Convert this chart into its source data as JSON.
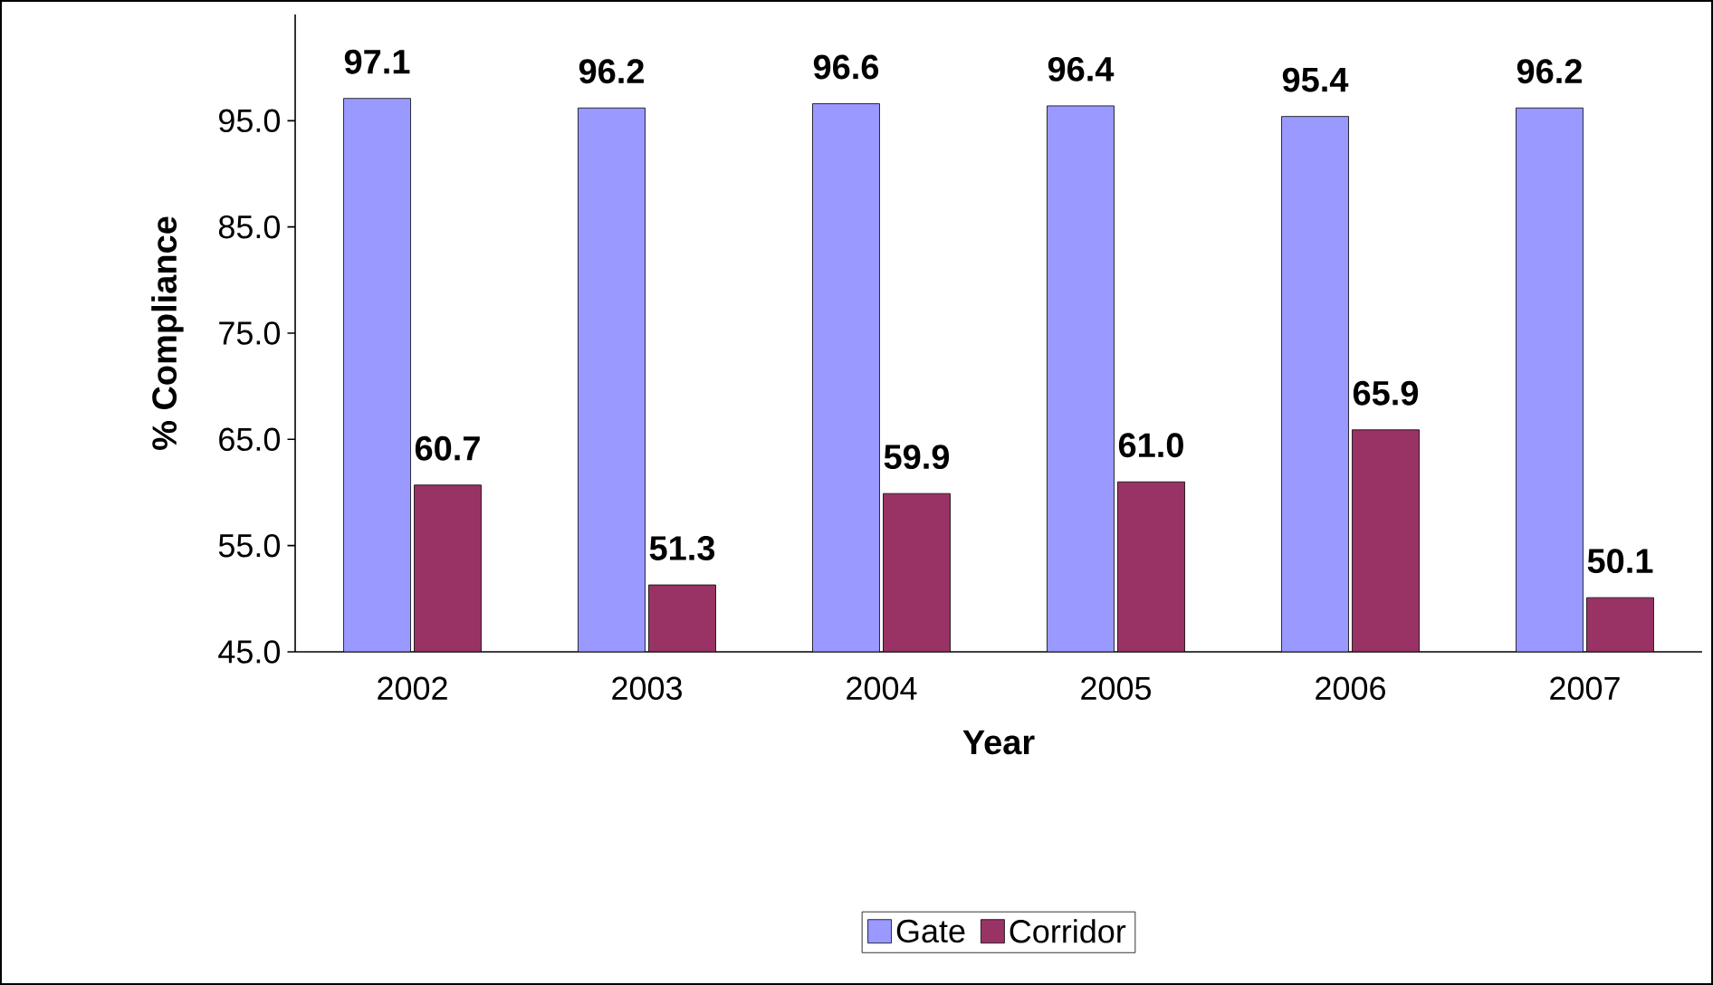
{
  "chart_data": {
    "type": "bar",
    "xlabel": "Year",
    "ylabel": "% Compliance",
    "categories": [
      "2002",
      "2003",
      "2004",
      "2005",
      "2006",
      "2007"
    ],
    "series": [
      {
        "name": "Gate",
        "color": "#9999ff",
        "values": [
          97.1,
          96.2,
          96.6,
          96.4,
          95.4,
          96.2
        ],
        "value_labels": [
          "97.1",
          "96.2",
          "96.6",
          "96.4",
          "95.4",
          "96.2"
        ]
      },
      {
        "name": "Corridor",
        "color": "#993366",
        "values": [
          60.7,
          51.3,
          59.9,
          61.0,
          65.9,
          50.1
        ],
        "value_labels": [
          "60.7",
          "51.3",
          "59.9",
          "61.0",
          "65.9",
          "50.1"
        ]
      }
    ],
    "ylim": [
      45,
      105
    ],
    "yticks": [
      {
        "value": 45,
        "label": "45.0"
      },
      {
        "value": 55,
        "label": "55.0"
      },
      {
        "value": 65,
        "label": "65.0"
      },
      {
        "value": 75,
        "label": "75.0"
      },
      {
        "value": 85,
        "label": "85.0"
      },
      {
        "value": 95,
        "label": "95.0"
      }
    ],
    "grid": false,
    "legend": "bottom"
  }
}
